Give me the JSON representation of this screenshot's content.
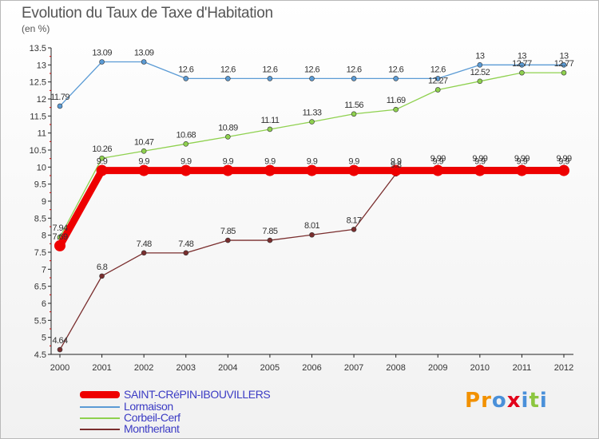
{
  "chart_data": {
    "type": "line",
    "title": "Evolution du Taux de Taxe d'Habitation",
    "subtitle": "(en %)",
    "xlabel": "",
    "ylabel": "",
    "x": [
      "2000",
      "2001",
      "2002",
      "2003",
      "2004",
      "2005",
      "2006",
      "2007",
      "2008",
      "2009",
      "2010",
      "2011",
      "2012"
    ],
    "ylim": [
      4.5,
      13.5
    ],
    "yticks": [
      "4.5",
      "5",
      "5.5",
      "6",
      "6.5",
      "7",
      "7.5",
      "8",
      "8.5",
      "9",
      "9.5",
      "10",
      "10.5",
      "11",
      "11.5",
      "12",
      "12.5",
      "13",
      "13.5"
    ],
    "grid": false,
    "legend_position": "bottom-left",
    "series": [
      {
        "name": "SAINT-CRéPIN-IBOUVILLERS",
        "color": "#ee0000",
        "values": [
          7.69,
          9.9,
          9.9,
          9.9,
          9.9,
          9.9,
          9.9,
          9.9,
          9.9,
          9.9,
          9.9,
          9.9,
          9.9
        ],
        "labels": [
          "7.69",
          "9.9",
          "9.9",
          "9.9",
          "9.9",
          "9.9",
          "9.9",
          "9.9",
          "9.9",
          "9.9",
          "9.9",
          "9.9",
          "9.9"
        ]
      },
      {
        "name": "Lormaison",
        "color": "#5b9bd5",
        "values": [
          11.79,
          13.09,
          13.09,
          12.6,
          12.6,
          12.6,
          12.6,
          12.6,
          12.6,
          12.6,
          13,
          13,
          13
        ],
        "labels": [
          "11.79",
          "13.09",
          "13.09",
          "12.6",
          "12.6",
          "12.6",
          "12.6",
          "12.6",
          "12.6",
          "12.6",
          "13",
          "13",
          "13"
        ]
      },
      {
        "name": "Corbeil-Cerf",
        "color": "#8fd14f",
        "values": [
          7.94,
          10.26,
          10.47,
          10.68,
          10.89,
          11.11,
          11.33,
          11.56,
          11.69,
          12.27,
          12.52,
          12.77,
          12.77
        ],
        "labels": [
          "7.94",
          "10.26",
          "10.47",
          "10.68",
          "10.89",
          "11.11",
          "11.33",
          "11.56",
          "11.69",
          "12.27",
          "12.52",
          "12.77",
          "12.77"
        ]
      },
      {
        "name": "Montherlant",
        "color": "#7a2e2e",
        "values": [
          4.64,
          6.8,
          7.48,
          7.48,
          7.85,
          7.85,
          8.01,
          8.17,
          9.8,
          9.99,
          9.99,
          9.99,
          9.99
        ],
        "labels": [
          "4.64",
          "6.8",
          "7.48",
          "7.48",
          "7.85",
          "7.85",
          "8.01",
          "8.17",
          "9.8",
          "9.99",
          "9.99",
          "9.99",
          "9.99"
        ]
      }
    ]
  },
  "branding": {
    "letters": [
      "P",
      "r",
      "o",
      "x",
      "i",
      "t",
      "i"
    ],
    "colors": [
      "#f29100",
      "#f29100",
      "#4a90d9",
      "#e2001a",
      "#4a90d9",
      "#8cc63f",
      "#4a90d9"
    ]
  }
}
